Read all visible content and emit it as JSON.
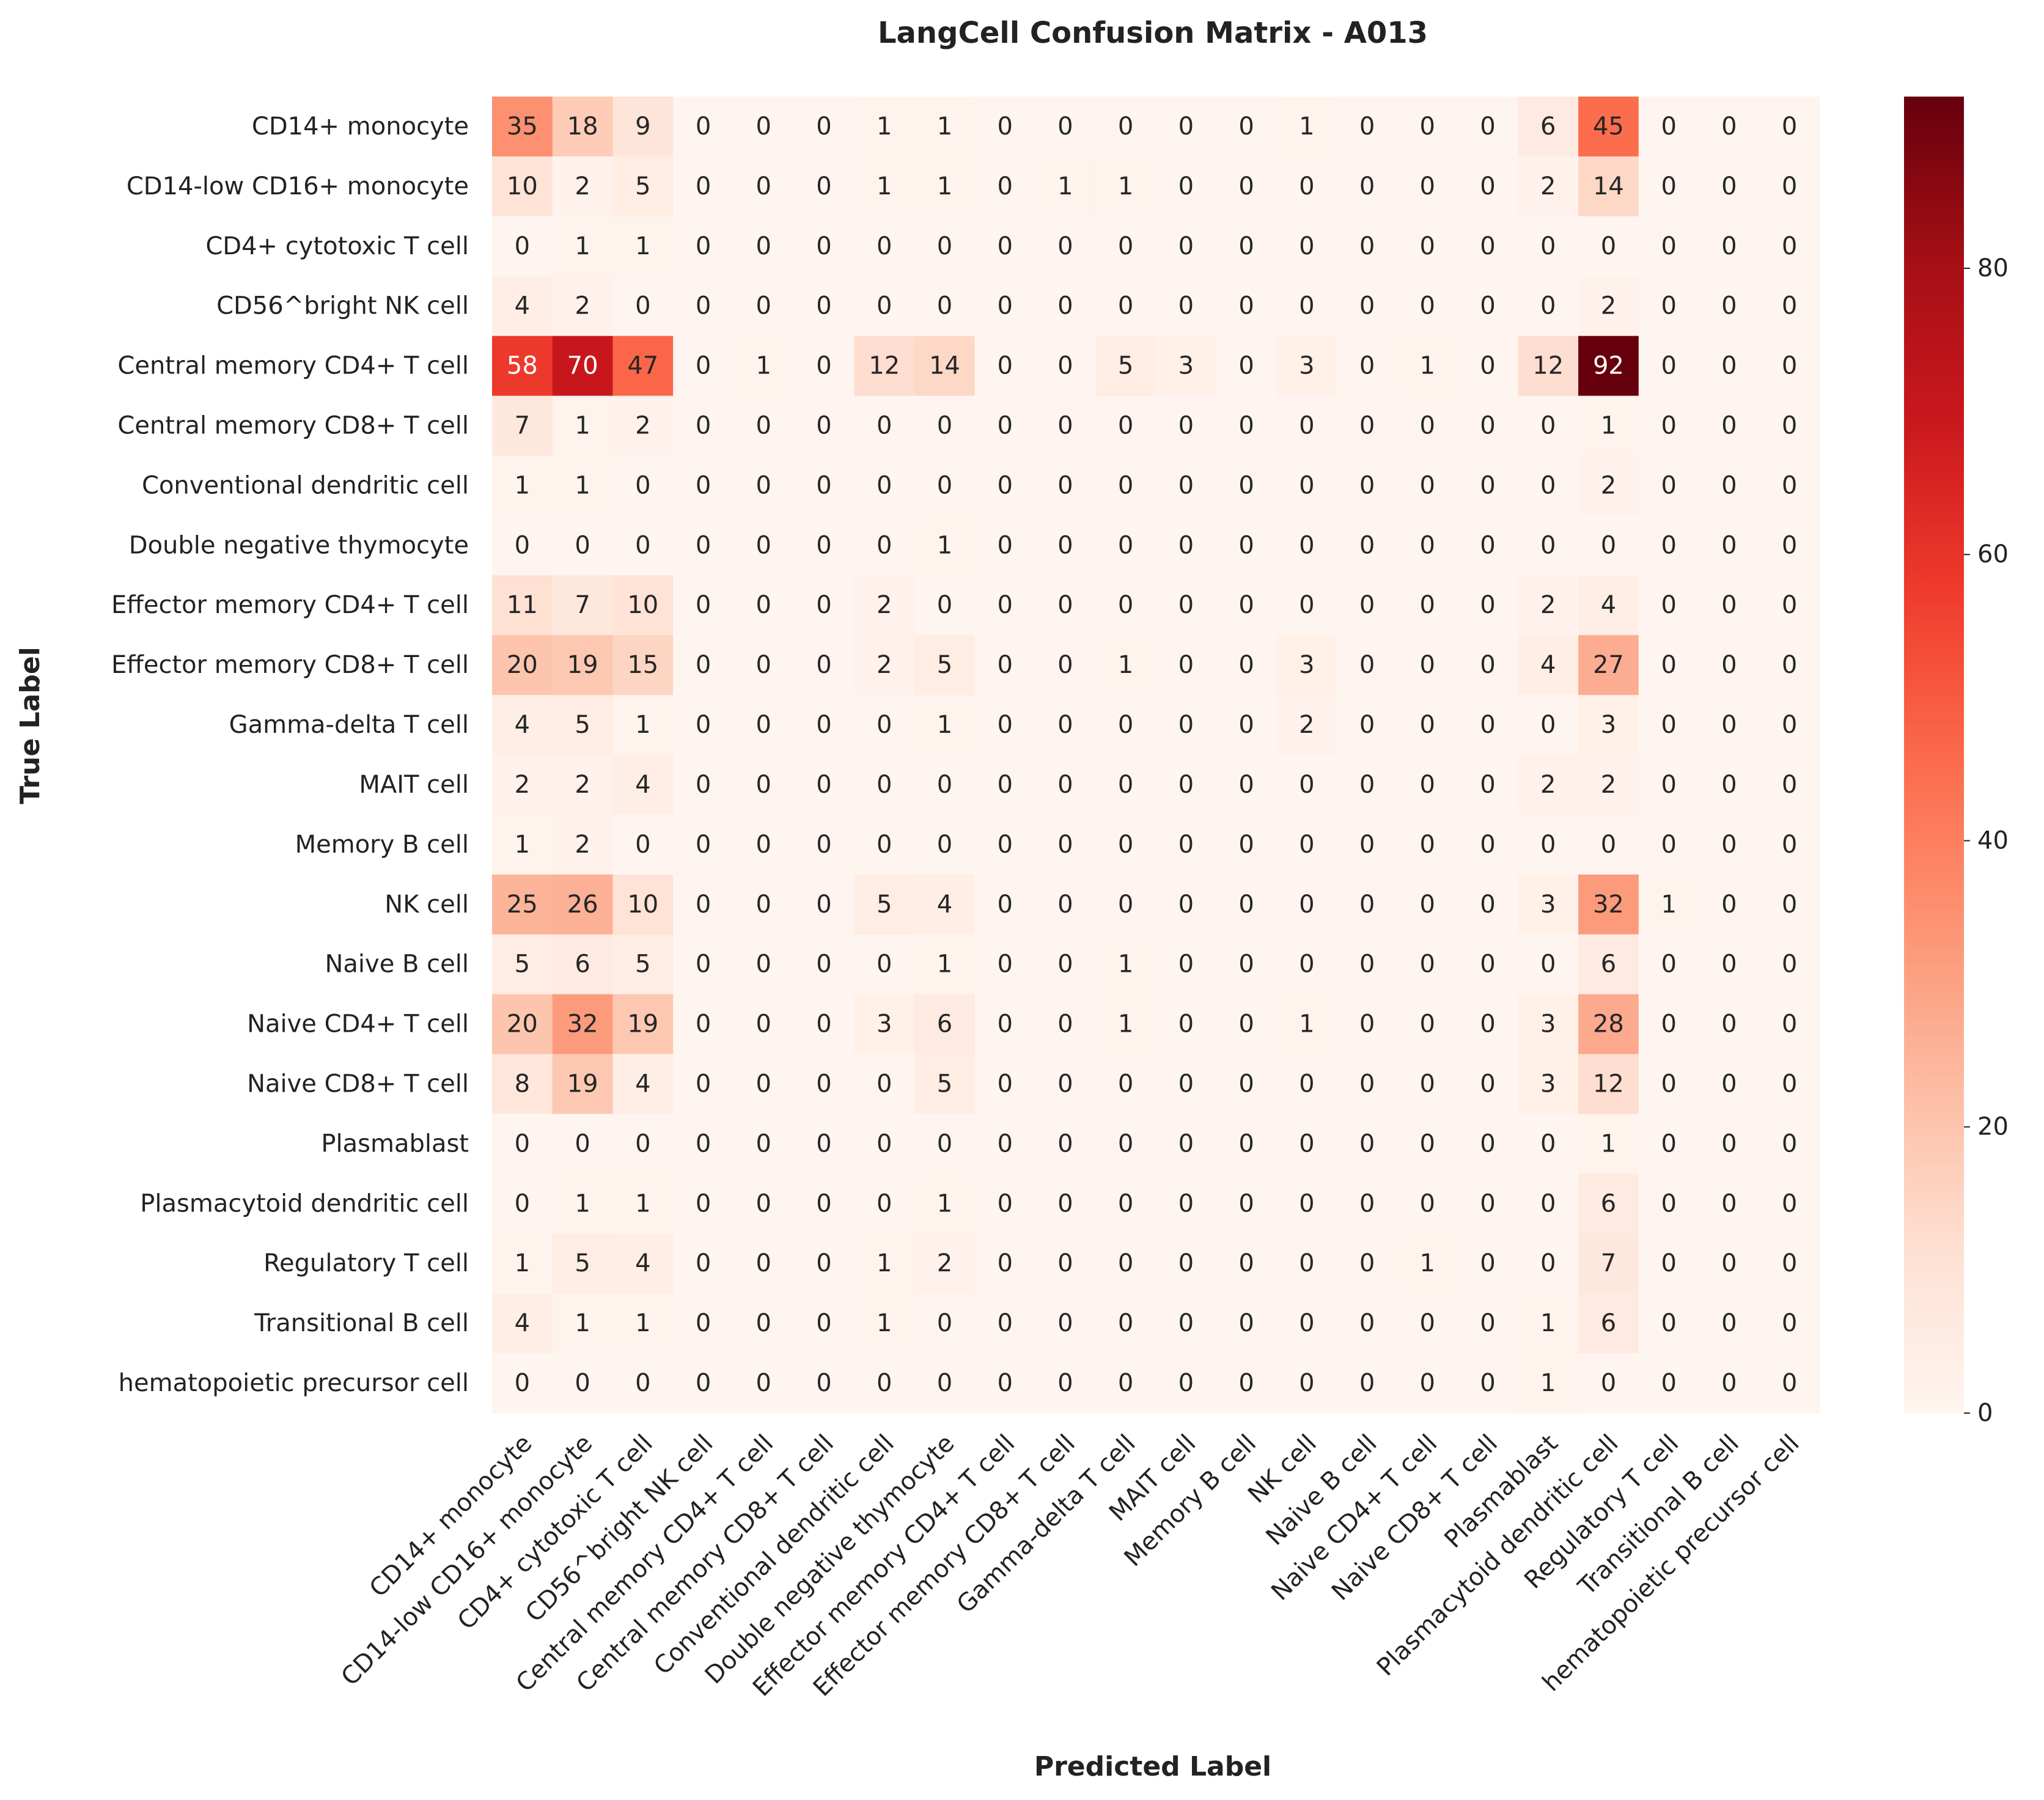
{
  "chart_data": {
    "type": "heatmap",
    "title": "LangCell Confusion Matrix - A013",
    "xlabel": "Predicted Label",
    "ylabel": "True Label",
    "row_labels": [
      "CD14+ monocyte",
      "CD14-low CD16+ monocyte",
      "CD4+ cytotoxic T cell",
      "CD56^bright NK cell",
      "Central memory CD4+ T cell",
      "Central memory CD8+ T cell",
      "Conventional dendritic cell",
      "Double negative thymocyte",
      "Effector memory CD4+ T cell",
      "Effector memory CD8+ T cell",
      "Gamma-delta T cell",
      "MAIT cell",
      "Memory B cell",
      "NK cell",
      "Naive B cell",
      "Naive CD4+ T cell",
      "Naive CD8+ T cell",
      "Plasmablast",
      "Plasmacytoid dendritic cell",
      "Regulatory T cell",
      "Transitional B cell",
      "hematopoietic precursor cell"
    ],
    "col_labels": [
      "CD14+ monocyte",
      "CD14-low CD16+ monocyte",
      "CD4+ cytotoxic T cell",
      "CD56^bright NK cell",
      "Central memory CD4+ T cell",
      "Central memory CD8+ T cell",
      "Conventional dendritic cell",
      "Double negative thymocyte",
      "Effector memory CD4+ T cell",
      "Effector memory CD8+ T cell",
      "Gamma-delta T cell",
      "MAIT cell",
      "Memory B cell",
      "NK cell",
      "Naive B cell",
      "Naive CD4+ T cell",
      "Naive CD8+ T cell",
      "Plasmablast",
      "Plasmacytoid dendritic cell",
      "Regulatory T cell",
      "Transitional B cell",
      "hematopoietic precursor cell"
    ],
    "values": [
      [
        35,
        18,
        9,
        0,
        0,
        0,
        1,
        1,
        0,
        0,
        0,
        0,
        0,
        1,
        0,
        0,
        0,
        6,
        45,
        0,
        0,
        0
      ],
      [
        10,
        2,
        5,
        0,
        0,
        0,
        1,
        1,
        0,
        1,
        1,
        0,
        0,
        0,
        0,
        0,
        0,
        2,
        14,
        0,
        0,
        0
      ],
      [
        0,
        1,
        1,
        0,
        0,
        0,
        0,
        0,
        0,
        0,
        0,
        0,
        0,
        0,
        0,
        0,
        0,
        0,
        0,
        0,
        0,
        0
      ],
      [
        4,
        2,
        0,
        0,
        0,
        0,
        0,
        0,
        0,
        0,
        0,
        0,
        0,
        0,
        0,
        0,
        0,
        0,
        2,
        0,
        0,
        0
      ],
      [
        58,
        70,
        47,
        0,
        1,
        0,
        12,
        14,
        0,
        0,
        5,
        3,
        0,
        3,
        0,
        1,
        0,
        12,
        92,
        0,
        0,
        0
      ],
      [
        7,
        1,
        2,
        0,
        0,
        0,
        0,
        0,
        0,
        0,
        0,
        0,
        0,
        0,
        0,
        0,
        0,
        0,
        1,
        0,
        0,
        0
      ],
      [
        1,
        1,
        0,
        0,
        0,
        0,
        0,
        0,
        0,
        0,
        0,
        0,
        0,
        0,
        0,
        0,
        0,
        0,
        2,
        0,
        0,
        0
      ],
      [
        0,
        0,
        0,
        0,
        0,
        0,
        0,
        1,
        0,
        0,
        0,
        0,
        0,
        0,
        0,
        0,
        0,
        0,
        0,
        0,
        0,
        0
      ],
      [
        11,
        7,
        10,
        0,
        0,
        0,
        2,
        0,
        0,
        0,
        0,
        0,
        0,
        0,
        0,
        0,
        0,
        2,
        4,
        0,
        0,
        0
      ],
      [
        20,
        19,
        15,
        0,
        0,
        0,
        2,
        5,
        0,
        0,
        1,
        0,
        0,
        3,
        0,
        0,
        0,
        4,
        27,
        0,
        0,
        0
      ],
      [
        4,
        5,
        1,
        0,
        0,
        0,
        0,
        1,
        0,
        0,
        0,
        0,
        0,
        2,
        0,
        0,
        0,
        0,
        3,
        0,
        0,
        0
      ],
      [
        2,
        2,
        4,
        0,
        0,
        0,
        0,
        0,
        0,
        0,
        0,
        0,
        0,
        0,
        0,
        0,
        0,
        2,
        2,
        0,
        0,
        0
      ],
      [
        1,
        2,
        0,
        0,
        0,
        0,
        0,
        0,
        0,
        0,
        0,
        0,
        0,
        0,
        0,
        0,
        0,
        0,
        0,
        0,
        0,
        0
      ],
      [
        25,
        26,
        10,
        0,
        0,
        0,
        5,
        4,
        0,
        0,
        0,
        0,
        0,
        0,
        0,
        0,
        0,
        3,
        32,
        1,
        0,
        0
      ],
      [
        5,
        6,
        5,
        0,
        0,
        0,
        0,
        1,
        0,
        0,
        1,
        0,
        0,
        0,
        0,
        0,
        0,
        0,
        6,
        0,
        0,
        0
      ],
      [
        20,
        32,
        19,
        0,
        0,
        0,
        3,
        6,
        0,
        0,
        1,
        0,
        0,
        1,
        0,
        0,
        0,
        3,
        28,
        0,
        0,
        0
      ],
      [
        8,
        19,
        4,
        0,
        0,
        0,
        0,
        5,
        0,
        0,
        0,
        0,
        0,
        0,
        0,
        0,
        0,
        3,
        12,
        0,
        0,
        0
      ],
      [
        0,
        0,
        0,
        0,
        0,
        0,
        0,
        0,
        0,
        0,
        0,
        0,
        0,
        0,
        0,
        0,
        0,
        0,
        1,
        0,
        0,
        0
      ],
      [
        0,
        1,
        1,
        0,
        0,
        0,
        0,
        1,
        0,
        0,
        0,
        0,
        0,
        0,
        0,
        0,
        0,
        0,
        6,
        0,
        0,
        0
      ],
      [
        1,
        5,
        4,
        0,
        0,
        0,
        1,
        2,
        0,
        0,
        0,
        0,
        0,
        0,
        0,
        1,
        0,
        0,
        7,
        0,
        0,
        0
      ],
      [
        4,
        1,
        1,
        0,
        0,
        0,
        1,
        0,
        0,
        0,
        0,
        0,
        0,
        0,
        0,
        0,
        0,
        1,
        6,
        0,
        0,
        0
      ],
      [
        0,
        0,
        0,
        0,
        0,
        0,
        0,
        0,
        0,
        0,
        0,
        0,
        0,
        0,
        0,
        0,
        0,
        1,
        0,
        0,
        0,
        0
      ]
    ],
    "colormap": "Reds",
    "color_range": [
      0,
      92
    ],
    "colorbar_ticks": [
      0,
      20,
      40,
      60,
      80
    ],
    "grid": false,
    "legend": "colorbar-right"
  }
}
